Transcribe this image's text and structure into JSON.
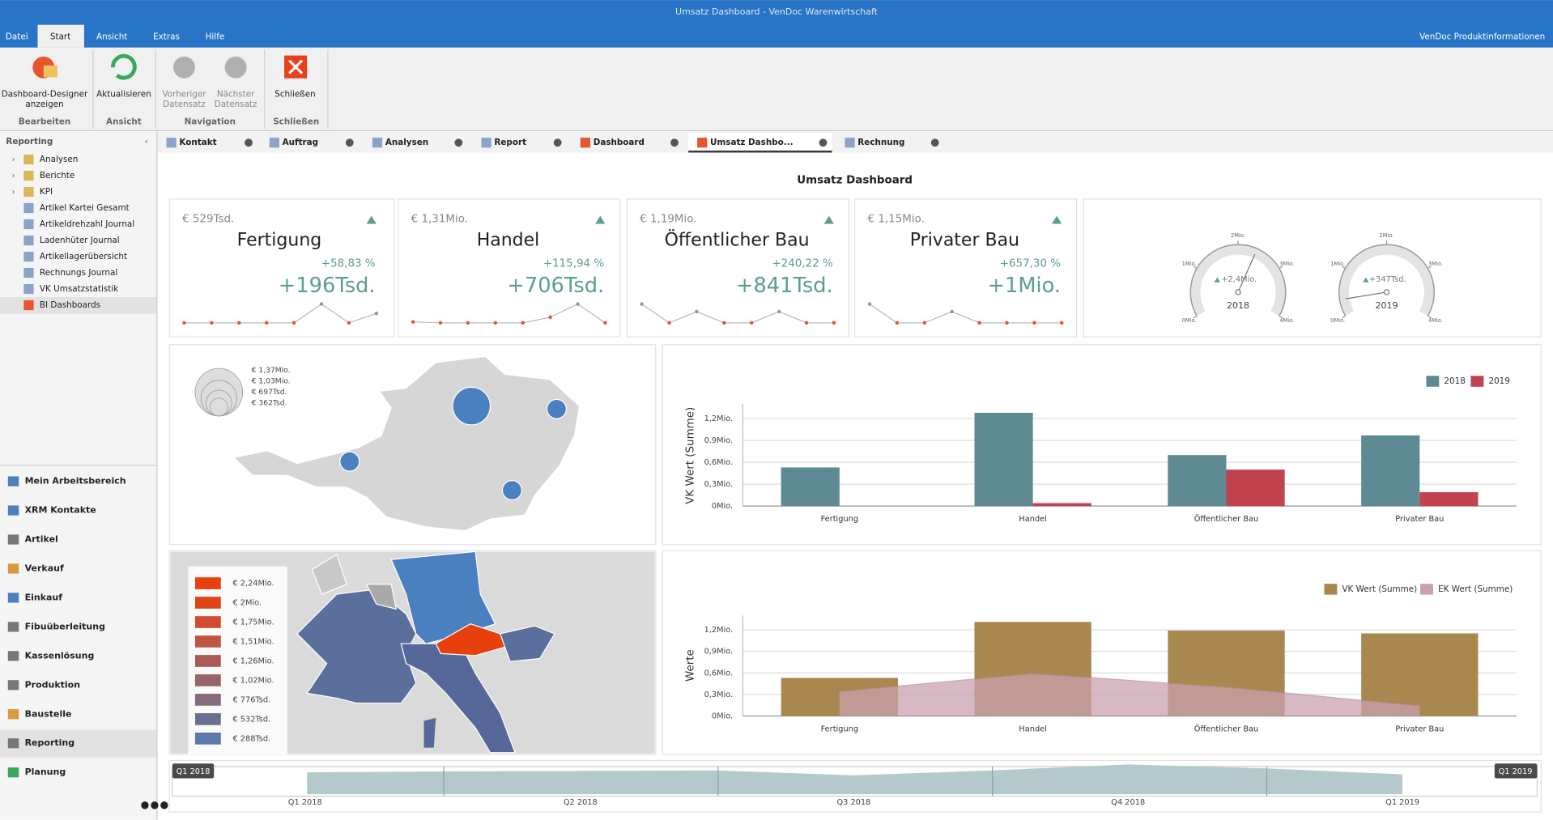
{
  "title_bar": {
    "title": "Umsatz Dashboard - VenDoc Warenwirtschaft"
  },
  "menu": {
    "items": [
      "Datei",
      "Start",
      "Ansicht",
      "Extras",
      "Hilfe"
    ],
    "info": "VenDoc Produktinformationen"
  },
  "ribbon": {
    "groups": [
      {
        "label": "Bearbeiten",
        "buttons": [
          {
            "lines": [
              "Dashboard-Designer",
              "anzeigen"
            ]
          }
        ]
      },
      {
        "label": "Ansicht",
        "buttons": [
          {
            "lines": [
              "Aktualisieren"
            ]
          }
        ]
      },
      {
        "label": "Navigation",
        "buttons": [
          {
            "lines": [
              "Vorheriger",
              "Datensatz"
            ]
          },
          {
            "lines": [
              "Nächster",
              "Datensatz"
            ]
          }
        ]
      },
      {
        "label": "Schließen",
        "buttons": [
          {
            "lines": [
              "Schließen"
            ]
          }
        ]
      }
    ]
  },
  "sidebar": {
    "title": "Reporting",
    "tree": [
      "Analysen",
      "Berichte",
      "KPI",
      "Artikel Kartei Gesamt",
      "Artikeldrehzahl Journal",
      "Ladenhüter Journal",
      "Artikellagerübersicht",
      "Rechnungs Journal",
      "VK Umsatzstatistik",
      "BI Dashboards"
    ],
    "nav": [
      "Mein Arbeitsbereich",
      "XRM Kontakte",
      "Artikel",
      "Verkauf",
      "Einkauf",
      "Fibuüberleitung",
      "Kassenlösung",
      "Produktion",
      "Baustelle",
      "Reporting",
      "Planung"
    ]
  },
  "tabs": [
    "Kontakt",
    "Auftrag",
    "Analysen",
    "Report",
    "Dashboard",
    "Umsatz Dashbo...",
    "Rechnung"
  ],
  "dashboard": {
    "title": "Umsatz Dashboard",
    "cards": [
      {
        "total": "€ 529Tsd.",
        "name": "Fertigung",
        "percent": "+58,83 %",
        "delta": "+196Tsd.",
        "sparkline": [
          0,
          0,
          0,
          0,
          0,
          1,
          0,
          0.5
        ]
      },
      {
        "total": "€ 1,31Mio.",
        "name": "Handel",
        "percent": "+115,94 %",
        "delta": "+706Tsd.",
        "sparkline": [
          0.05,
          0,
          0,
          0,
          0,
          0.3,
          1,
          0
        ]
      },
      {
        "total": "€ 1,19Mio.",
        "name": "Öffentlicher Bau",
        "percent": "+240,22 %",
        "delta": "+841Tsd.",
        "sparkline": [
          1,
          0,
          0.6,
          0,
          0,
          0.6,
          0,
          0
        ]
      },
      {
        "total": "€ 1,15Mio.",
        "name": "Privater Bau",
        "percent": "+657,30 %",
        "delta": "+1Mio.",
        "sparkline": [
          1,
          0,
          0,
          0.6,
          0,
          0,
          0,
          0
        ]
      }
    ],
    "gauges": {
      "lim": [
        0,
        4
      ],
      "ticks": [
        {
          "value": 0,
          "label": "0Mio."
        },
        {
          "value": 1,
          "label": "1Mio."
        },
        {
          "value": 2,
          "label": "2Mio."
        },
        {
          "value": 3,
          "label": "3Mio."
        },
        {
          "value": 4,
          "label": "4Mio."
        }
      ],
      "items": [
        {
          "value": 2.4,
          "value_label": "+2,4Mio.",
          "label": "2018"
        },
        {
          "value": 0.347,
          "value_label": "+347Tsd.",
          "label": "2019"
        }
      ]
    },
    "bubble_map": {
      "legend": [
        "€ 1,37Mio.",
        "€ 1,03Mio.",
        "€ 697Tsd.",
        "€ 362Tsd."
      ],
      "bubbles": [
        1.37,
        0.362,
        0.362,
        0.362
      ]
    },
    "choropleth": {
      "legend": [
        {
          "label": "€ 2,24Mio.",
          "color": "#e8400c"
        },
        {
          "label": "€ 2Mio.",
          "color": "#dd4519"
        },
        {
          "label": "€ 1,75Mio.",
          "color": "#d04d2f"
        },
        {
          "label": "€ 1,51Mio.",
          "color": "#bf5542"
        },
        {
          "label": "€ 1,26Mio.",
          "color": "#aa5b57"
        },
        {
          "label": "€ 1,02Mio.",
          "color": "#98636a"
        },
        {
          "label": "€ 776Tsd.",
          "color": "#846b7d"
        },
        {
          "label": "€ 532Tsd.",
          "color": "#6a7090"
        },
        {
          "label": "€ 288Tsd.",
          "color": "#5b79aa"
        }
      ]
    },
    "bar_chart": {
      "type": "bar",
      "y_label": "VK Wert (Summe)",
      "categories": [
        "Fertigung",
        "Handel",
        "Öffentlicher Bau",
        "Privater Bau"
      ],
      "series": [
        {
          "name": "2018",
          "color": "#5e8a93",
          "values": [
            0.53,
            1.28,
            0.7,
            0.97
          ]
        },
        {
          "name": "2019",
          "color": "#c0434f",
          "values": [
            0,
            0.04,
            0.5,
            0.19
          ]
        }
      ],
      "ylim": [
        0,
        1.4
      ],
      "yticks": [
        {
          "value": 0,
          "label": "0Mio."
        },
        {
          "value": 0.3,
          "label": "0,3Mio."
        },
        {
          "value": 0.6,
          "label": "0,6Mio."
        },
        {
          "value": 0.9,
          "label": "0,9Mio."
        },
        {
          "value": 1.2,
          "label": "1,2Mio."
        }
      ]
    },
    "combo_chart": {
      "type": "bar",
      "y_label": "Werte",
      "categories": [
        "Fertigung",
        "Handel",
        "Öffentlicher Bau",
        "Privater Bau"
      ],
      "series": [
        {
          "name": "VK Wert (Summe)",
          "type": "bar",
          "color": "#a8884e",
          "values": [
            0.53,
            1.31,
            1.19,
            1.15
          ]
        },
        {
          "name": "EK Wert (Summe)",
          "type": "area",
          "color": "#c9a2ae",
          "values": [
            0.34,
            0.59,
            0.4,
            0.14
          ]
        }
      ],
      "ylim": [
        0,
        1.4
      ],
      "yticks": [
        {
          "value": 0,
          "label": "0Mio."
        },
        {
          "value": 0.3,
          "label": "0,3Mio."
        },
        {
          "value": 0.6,
          "label": "0,6Mio."
        },
        {
          "value": 0.9,
          "label": "0,9Mio."
        },
        {
          "value": 1.2,
          "label": "1,2Mio."
        }
      ]
    },
    "range": {
      "start": "Q1 2018",
      "end": "Q1 2019",
      "ticks": [
        "Q1 2018",
        "Q2 2018",
        "Q3 2018",
        "Q4 2018",
        "Q1 2019"
      ]
    }
  }
}
